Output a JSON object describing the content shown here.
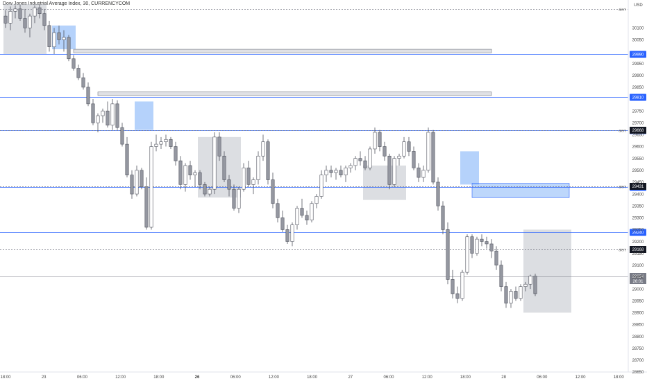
{
  "header": {
    "title": "Dow Jones Industrial Average Index, 30, CURRENCYCOM"
  },
  "chart_data": {
    "type": "candlestick",
    "currency": "USD",
    "ylim": [
      28650,
      30200
    ],
    "y_ticks": [
      30100,
      30050,
      29950,
      29900,
      29850,
      29750,
      29700,
      29650,
      29600,
      29550,
      29500,
      29450,
      29400,
      29350,
      29300,
      29250,
      29200,
      29150,
      29100,
      29050,
      29000,
      28950,
      28900,
      28850,
      28800,
      28750,
      28700,
      28650
    ],
    "x_ticks": [
      "18:00",
      "23",
      "06:00",
      "12:00",
      "18:00",
      "26",
      "06:00",
      "12:00",
      "18:00",
      "27",
      "06:00",
      "12:00",
      "18:00",
      "28",
      "06:00",
      "12:00",
      "18:00"
    ],
    "bold_x_ticks": [
      "26"
    ],
    "level_lines": [
      29990,
      29810,
      29670,
      29430,
      29240
    ],
    "level_badges": [
      "29990",
      "29810",
      "29670",
      "29430",
      "29240"
    ],
    "dashed_levels": [
      30180,
      29668,
      29431,
      29168
    ],
    "badges": {
      "b29668": "29668",
      "b29431": "29431",
      "b29168": "29168",
      "price_top": "29054",
      "price_bottom": "26:01"
    },
    "alert_label": "alert",
    "gray_zones": [
      {
        "from": 0,
        "to": 8,
        "y_top": 30200,
        "y_bottom": 29990
      },
      {
        "from": 40,
        "to": 48,
        "y_top": 29640,
        "y_bottom": 29385
      },
      {
        "from": 74,
        "to": 82,
        "y_top": 29520,
        "y_bottom": 29375
      },
      {
        "from": 107,
        "to": 116,
        "y_top": 29250,
        "y_bottom": 28900
      }
    ],
    "blue_zones": [
      {
        "from": 10,
        "to": 14,
        "y_top": 30110,
        "y_bottom": 30010
      },
      {
        "from": 27,
        "to": 30,
        "y_top": 29790,
        "y_bottom": 29670
      },
      {
        "from": 94,
        "to": 97,
        "y_top": 29580,
        "y_bottom": 29440
      }
    ],
    "bands": [
      {
        "from": 14,
        "to": 100,
        "y_top": 30010,
        "y_bottom": 29995,
        "style": "gray"
      },
      {
        "from": 19,
        "to": 100,
        "y_top": 29830,
        "y_bottom": 29815,
        "style": "gray"
      },
      {
        "from": 96,
        "to": 116,
        "y_top": 29445,
        "y_bottom": 29385,
        "style": "blue"
      }
    ],
    "candles": [
      [
        30150,
        30175,
        30100,
        30120
      ],
      [
        30120,
        30190,
        30090,
        30170
      ],
      [
        30170,
        30195,
        30140,
        30180
      ],
      [
        30180,
        30198,
        30130,
        30140
      ],
      [
        30140,
        30180,
        30080,
        30100
      ],
      [
        30100,
        30160,
        30060,
        30150
      ],
      [
        30150,
        30195,
        30120,
        30185
      ],
      [
        30185,
        30198,
        30140,
        30160
      ],
      [
        30160,
        30180,
        30090,
        30110
      ],
      [
        30110,
        30130,
        30000,
        30020
      ],
      [
        30020,
        30100,
        29990,
        30080
      ],
      [
        30080,
        30110,
        30030,
        30050
      ],
      [
        30050,
        30090,
        30000,
        30060
      ],
      [
        30060,
        30070,
        29960,
        29970
      ],
      [
        29970,
        29985,
        29920,
        29930
      ],
      [
        29930,
        29945,
        29880,
        29890
      ],
      [
        29890,
        29910,
        29840,
        29850
      ],
      [
        29850,
        29870,
        29770,
        29780
      ],
      [
        29780,
        29800,
        29690,
        29700
      ],
      [
        29700,
        29740,
        29660,
        29730
      ],
      [
        29730,
        29760,
        29700,
        29750
      ],
      [
        29750,
        29790,
        29680,
        29690
      ],
      [
        29690,
        29800,
        29670,
        29780
      ],
      [
        29780,
        29795,
        29670,
        29680
      ],
      [
        29680,
        29700,
        29600,
        29610
      ],
      [
        29610,
        29640,
        29470,
        29480
      ],
      [
        29480,
        29500,
        29380,
        29400
      ],
      [
        29400,
        29520,
        29390,
        29500
      ],
      [
        29500,
        29510,
        29420,
        29430
      ],
      [
        29430,
        29470,
        29250,
        29260
      ],
      [
        29260,
        29620,
        29250,
        29600
      ],
      [
        29600,
        29650,
        29580,
        29610
      ],
      [
        29610,
        29640,
        29590,
        29620
      ],
      [
        29620,
        29650,
        29600,
        29630
      ],
      [
        29630,
        29640,
        29590,
        29600
      ],
      [
        29600,
        29620,
        29520,
        29540
      ],
      [
        29540,
        29560,
        29420,
        29440
      ],
      [
        29440,
        29530,
        29410,
        29520
      ],
      [
        29520,
        29540,
        29460,
        29480
      ],
      [
        29480,
        29500,
        29430,
        29490
      ],
      [
        29490,
        29500,
        29420,
        29440
      ],
      [
        29440,
        29450,
        29390,
        29400
      ],
      [
        29400,
        29430,
        29390,
        29420
      ],
      [
        29420,
        29660,
        29400,
        29640
      ],
      [
        29640,
        29660,
        29540,
        29560
      ],
      [
        29560,
        29580,
        29450,
        29460
      ],
      [
        29460,
        29480,
        29390,
        29420
      ],
      [
        29420,
        29440,
        29330,
        29340
      ],
      [
        29340,
        29430,
        29320,
        29420
      ],
      [
        29420,
        29530,
        29410,
        29510
      ],
      [
        29510,
        29540,
        29430,
        29440
      ],
      [
        29440,
        29470,
        29400,
        29460
      ],
      [
        29460,
        29580,
        29440,
        29560
      ],
      [
        29560,
        29650,
        29540,
        29620
      ],
      [
        29620,
        29630,
        29440,
        29460
      ],
      [
        29460,
        29490,
        29340,
        29360
      ],
      [
        29360,
        29380,
        29280,
        29300
      ],
      [
        29300,
        29330,
        29240,
        29250
      ],
      [
        29250,
        29270,
        29190,
        29200
      ],
      [
        29200,
        29280,
        29180,
        29270
      ],
      [
        29270,
        29350,
        29250,
        29340
      ],
      [
        29340,
        29380,
        29300,
        29310
      ],
      [
        29310,
        29330,
        29270,
        29290
      ],
      [
        29290,
        29370,
        29280,
        29360
      ],
      [
        29360,
        29400,
        29340,
        29390
      ],
      [
        29390,
        29500,
        29380,
        29480
      ],
      [
        29480,
        29520,
        29450,
        29500
      ],
      [
        29500,
        29520,
        29470,
        29490
      ],
      [
        29490,
        29510,
        29460,
        29500
      ],
      [
        29500,
        29520,
        29470,
        29480
      ],
      [
        29480,
        29520,
        29450,
        29510
      ],
      [
        29510,
        29530,
        29490,
        29520
      ],
      [
        29520,
        29560,
        29500,
        29550
      ],
      [
        29550,
        29580,
        29520,
        29540
      ],
      [
        29540,
        29560,
        29500,
        29510
      ],
      [
        29510,
        29600,
        29500,
        29590
      ],
      [
        29590,
        29680,
        29570,
        29660
      ],
      [
        29660,
        29670,
        29580,
        29600
      ],
      [
        29600,
        29620,
        29540,
        29560
      ],
      [
        29560,
        29570,
        29420,
        29440
      ],
      [
        29440,
        29560,
        29430,
        29550
      ],
      [
        29550,
        29570,
        29520,
        29560
      ],
      [
        29560,
        29640,
        29550,
        29620
      ],
      [
        29620,
        29640,
        29560,
        29580
      ],
      [
        29580,
        29600,
        29500,
        29510
      ],
      [
        29510,
        29530,
        29450,
        29470
      ],
      [
        29470,
        29520,
        29450,
        29500
      ],
      [
        29500,
        29680,
        29490,
        29660
      ],
      [
        29660,
        29670,
        29440,
        29450
      ],
      [
        29450,
        29470,
        29330,
        29350
      ],
      [
        29350,
        29370,
        29230,
        29250
      ],
      [
        29250,
        29280,
        29020,
        29040
      ],
      [
        29040,
        29080,
        28960,
        28980
      ],
      [
        28980,
        29010,
        28940,
        28960
      ],
      [
        28960,
        29080,
        28950,
        29070
      ],
      [
        29070,
        29230,
        29060,
        29220
      ],
      [
        29220,
        29230,
        29130,
        29150
      ],
      [
        29150,
        29220,
        29140,
        29210
      ],
      [
        29210,
        29230,
        29180,
        29200
      ],
      [
        29200,
        29220,
        29170,
        29190
      ],
      [
        29190,
        29210,
        29130,
        29160
      ],
      [
        29160,
        29180,
        29080,
        29100
      ],
      [
        29100,
        29120,
        28990,
        29010
      ],
      [
        29010,
        29030,
        28920,
        28940
      ],
      [
        28940,
        29000,
        28920,
        28990
      ],
      [
        28990,
        29010,
        28950,
        28960
      ],
      [
        28960,
        29020,
        28950,
        29010
      ],
      [
        29010,
        29030,
        28990,
        29020
      ],
      [
        29020,
        29060,
        29000,
        29054
      ],
      [
        29054,
        29064,
        28970,
        28980
      ]
    ]
  }
}
